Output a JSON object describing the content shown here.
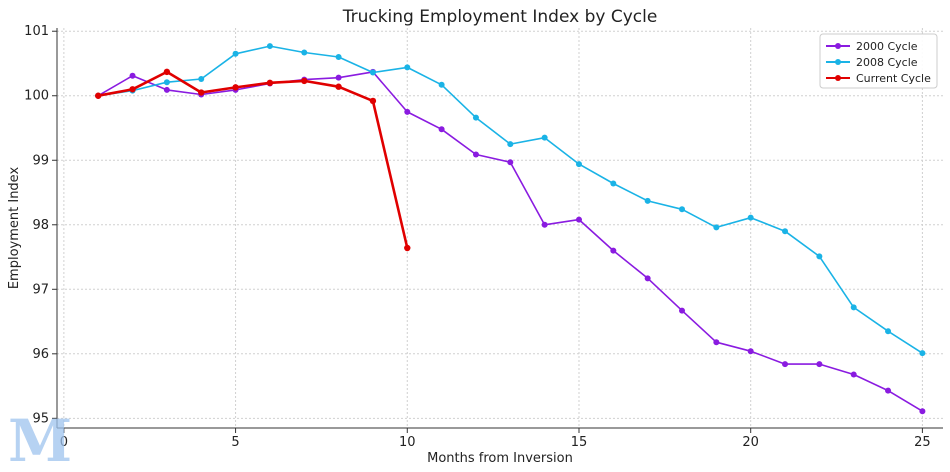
{
  "chart_data": {
    "type": "line",
    "title": "Trucking Employment Index by Cycle",
    "xlabel": "Months from Inversion",
    "ylabel": "Employment Index",
    "xlim": [
      -0.2,
      25.6
    ],
    "ylim": [
      94.85,
      101.05
    ],
    "xticks": [
      0,
      5,
      10,
      15,
      20,
      25
    ],
    "yticks": [
      95,
      96,
      97,
      98,
      99,
      100,
      101
    ],
    "grid": true,
    "legend_position": "top-right",
    "series": [
      {
        "name": "2000 Cycle",
        "color": "#8a1be0",
        "x": [
          1,
          2,
          3,
          4,
          5,
          6,
          7,
          8,
          9,
          10,
          11,
          12,
          13,
          14,
          15,
          16,
          17,
          18,
          19,
          20,
          21,
          22,
          23,
          24,
          25
        ],
        "values": [
          100.0,
          100.31,
          100.09,
          100.02,
          100.09,
          100.19,
          100.25,
          100.28,
          100.37,
          99.75,
          99.48,
          99.09,
          98.97,
          98.0,
          98.08,
          97.6,
          97.17,
          96.67,
          96.18,
          96.04,
          95.84,
          95.84,
          95.68,
          95.43,
          95.11
        ]
      },
      {
        "name": "2008 Cycle",
        "color": "#1ab3e6",
        "x": [
          1,
          2,
          3,
          4,
          5,
          6,
          7,
          8,
          9,
          10,
          11,
          12,
          13,
          14,
          15,
          16,
          17,
          18,
          19,
          20,
          21,
          22,
          23,
          24,
          25
        ],
        "values": [
          100.0,
          100.08,
          100.21,
          100.26,
          100.65,
          100.77,
          100.67,
          100.6,
          100.36,
          100.44,
          100.17,
          99.66,
          99.25,
          99.35,
          98.94,
          98.64,
          98.37,
          98.24,
          97.96,
          98.11,
          97.9,
          97.51,
          96.72,
          96.35,
          96.01
        ]
      },
      {
        "name": "Current Cycle",
        "color": "#e00000",
        "x": [
          1,
          2,
          3,
          4,
          5,
          6,
          7,
          8,
          9,
          10
        ],
        "values": [
          100.0,
          100.1,
          100.37,
          100.05,
          100.13,
          100.2,
          100.23,
          100.14,
          99.92,
          97.64
        ]
      }
    ]
  }
}
